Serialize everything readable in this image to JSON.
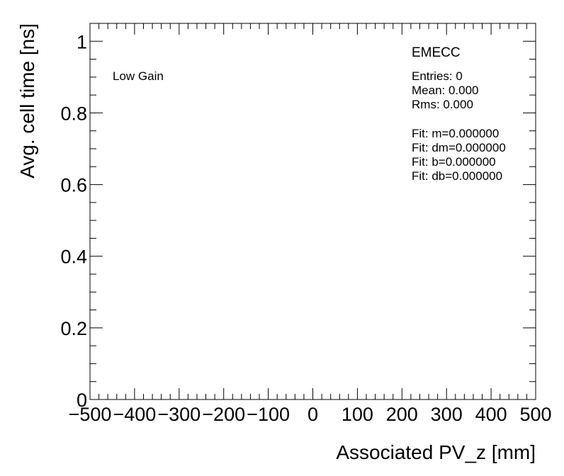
{
  "chart_data": {
    "type": "scatter",
    "title": "",
    "xlabel": "Associated PV_z [mm]",
    "ylabel": "Avg. cell time [ns]",
    "xlim": [
      -500,
      500
    ],
    "ylim": [
      0,
      1.05
    ],
    "x_ticks": [
      "−500",
      "−400",
      "−300",
      "−200",
      "−100",
      "0",
      "100",
      "200",
      "300",
      "400",
      "500"
    ],
    "x_tick_values": [
      -500,
      -400,
      -300,
      -200,
      -100,
      0,
      100,
      200,
      300,
      400,
      500
    ],
    "y_ticks": [
      "0",
      "0.2",
      "0.4",
      "0.6",
      "0.8",
      "1"
    ],
    "y_tick_values": [
      0,
      0.2,
      0.4,
      0.6,
      0.8,
      1.0
    ],
    "grid": false,
    "series": [
      {
        "x": [],
        "y": []
      }
    ],
    "annotations": {
      "gain_label": "Low Gain",
      "partition": "EMECC",
      "stats": [
        "Entries: 0",
        "Mean: 0.000",
        "Rms: 0.000"
      ],
      "fit": [
        "Fit: m=0.000000",
        "Fit: dm=0.000000",
        "Fit: b=0.000000",
        "Fit: db=0.000000"
      ]
    }
  }
}
